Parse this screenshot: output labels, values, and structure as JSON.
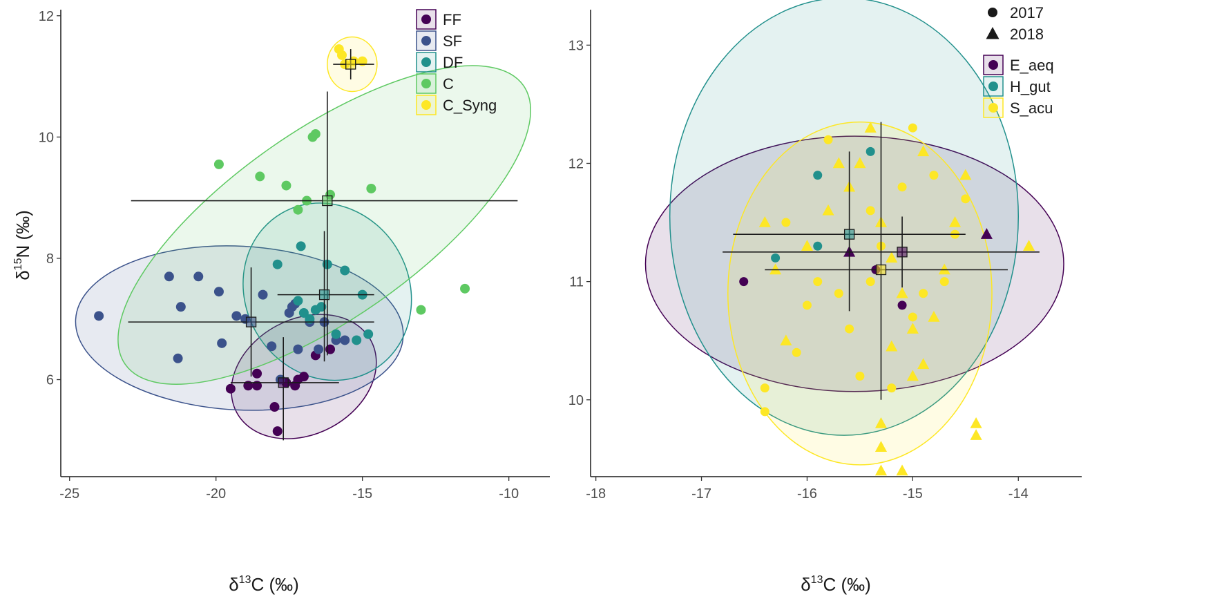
{
  "chart_data": [
    {
      "type": "scatter",
      "panel": "left",
      "xlabel_prefix": "δ",
      "xlabel_sup": "13",
      "xlabel_suffix": "C (‰)",
      "ylabel_prefix": "δ",
      "ylabel_sup": "15",
      "ylabel_suffix": "N (‰)",
      "xlim": [
        -25.3,
        -8.6
      ],
      "ylim": [
        4.4,
        12.1
      ],
      "xticks": [
        -25,
        -20,
        -15,
        -10
      ],
      "yticks": [
        6,
        8,
        10,
        12
      ],
      "legend_position": "top-right",
      "groups": [
        {
          "name": "FF",
          "color": "#440154",
          "points": [
            [
              -19.5,
              5.85
            ],
            [
              -18.9,
              5.9
            ],
            [
              -18.6,
              6.1
            ],
            [
              -18.6,
              5.9
            ],
            [
              -18.0,
              5.55
            ],
            [
              -17.9,
              5.15
            ],
            [
              -17.6,
              5.95
            ],
            [
              -17.3,
              5.9
            ],
            [
              -17.2,
              6.0
            ],
            [
              -17.0,
              6.05
            ],
            [
              -16.6,
              6.4
            ],
            [
              -16.1,
              6.5
            ]
          ],
          "mean": [
            -17.7,
            5.95
          ],
          "x_bar": [
            -19.5,
            -15.8
          ],
          "y_bar": [
            5.0,
            6.7
          ],
          "ellipse": {
            "cx": -17.0,
            "cy": 6.05,
            "rx": 2.6,
            "ry": 0.95,
            "angle": 28
          }
        },
        {
          "name": "SF",
          "color": "#3b528b",
          "points": [
            [
              -24.0,
              7.05
            ],
            [
              -21.6,
              7.7
            ],
            [
              -21.2,
              7.2
            ],
            [
              -21.3,
              6.35
            ],
            [
              -20.6,
              7.7
            ],
            [
              -19.9,
              7.45
            ],
            [
              -19.8,
              6.6
            ],
            [
              -19.3,
              7.05
            ],
            [
              -19.0,
              7.0
            ],
            [
              -18.4,
              7.4
            ],
            [
              -18.1,
              6.55
            ],
            [
              -17.8,
              6.0
            ],
            [
              -17.5,
              7.1
            ],
            [
              -17.3,
              7.25
            ],
            [
              -17.2,
              6.5
            ],
            [
              -16.8,
              6.95
            ],
            [
              -16.5,
              6.5
            ],
            [
              -16.3,
              6.95
            ],
            [
              -15.9,
              6.65
            ],
            [
              -15.6,
              6.65
            ],
            [
              -17.4,
              7.2
            ]
          ],
          "mean": [
            -18.8,
            6.95
          ],
          "x_bar": [
            -23.0,
            -14.6
          ],
          "y_bar": [
            6.05,
            7.85
          ],
          "ellipse": {
            "cx": -19.2,
            "cy": 6.85,
            "rx": 5.6,
            "ry": 1.35,
            "angle": -3
          }
        },
        {
          "name": "DF",
          "color": "#21908c",
          "points": [
            [
              -17.9,
              7.9
            ],
            [
              -17.2,
              7.3
            ],
            [
              -17.0,
              7.1
            ],
            [
              -16.8,
              7.0
            ],
            [
              -16.6,
              7.15
            ],
            [
              -16.4,
              7.2
            ],
            [
              -16.2,
              7.9
            ],
            [
              -15.9,
              6.75
            ],
            [
              -15.6,
              7.8
            ],
            [
              -15.2,
              6.65
            ],
            [
              -14.8,
              6.75
            ],
            [
              -15.0,
              7.4
            ],
            [
              -17.1,
              8.2
            ]
          ],
          "mean": [
            -16.3,
            7.4
          ],
          "x_bar": [
            -17.9,
            -14.6
          ],
          "y_bar": [
            6.3,
            8.45
          ],
          "ellipse": {
            "cx": -16.2,
            "cy": 7.45,
            "rx": 3.1,
            "ry": 1.35,
            "angle": 120
          }
        },
        {
          "name": "C",
          "color": "#5ec962",
          "points": [
            [
              -19.9,
              9.55
            ],
            [
              -18.5,
              9.35
            ],
            [
              -17.6,
              9.2
            ],
            [
              -17.2,
              8.8
            ],
            [
              -16.9,
              8.95
            ],
            [
              -16.6,
              10.05
            ],
            [
              -16.7,
              10.0
            ],
            [
              -16.1,
              9.05
            ],
            [
              -14.7,
              9.15
            ],
            [
              -13.0,
              7.15
            ],
            [
              -11.5,
              7.5
            ]
          ],
          "mean": [
            -16.2,
            8.95
          ],
          "x_bar": [
            -22.9,
            -9.7
          ],
          "y_bar": [
            6.4,
            10.75
          ],
          "ellipse": {
            "cx": -16.3,
            "cy": 8.55,
            "rx": 8.3,
            "ry": 1.55,
            "angle": 35
          }
        },
        {
          "name": "C_Syng",
          "color": "#fde725",
          "points": [
            [
              -15.8,
              11.45
            ],
            [
              -15.6,
              11.2
            ],
            [
              -15.3,
              11.25
            ],
            [
              -15.0,
              11.25
            ],
            [
              -15.7,
              11.35
            ]
          ],
          "mean": [
            -15.4,
            11.2
          ],
          "x_bar": [
            -16.0,
            -14.6
          ],
          "y_bar": [
            10.95,
            11.45
          ],
          "ellipse": {
            "cx": -15.35,
            "cy": 11.2,
            "rx": 0.85,
            "ry": 0.45,
            "angle": 0
          }
        }
      ]
    },
    {
      "type": "scatter",
      "panel": "right",
      "xlabel_prefix": "δ",
      "xlabel_sup": "13",
      "xlabel_suffix": "C (‰)",
      "xlim": [
        -18.05,
        -13.4
      ],
      "ylim": [
        9.35,
        13.3
      ],
      "xticks": [
        -18,
        -17,
        -16,
        -15,
        -14
      ],
      "yticks": [
        10,
        11,
        12,
        13
      ],
      "legend_position": "top-right",
      "shape_legend": [
        {
          "label": "2017",
          "shape": "circle"
        },
        {
          "label": "2018",
          "shape": "triangle"
        }
      ],
      "groups": [
        {
          "name": "E_aeq",
          "color": "#440154",
          "points_2017": [
            [
              -16.6,
              11.0
            ],
            [
              -15.1,
              10.8
            ],
            [
              -15.35,
              11.1
            ]
          ],
          "points_2018": [
            [
              -15.6,
              11.25
            ],
            [
              -14.3,
              11.4
            ]
          ],
          "mean": [
            -15.1,
            11.25
          ],
          "x_bar": [
            -16.8,
            -13.8
          ],
          "y_bar": [
            10.95,
            11.55
          ],
          "ellipse": {
            "cx": -15.55,
            "cy": 11.15,
            "rx": 1.98,
            "ry": 1.08,
            "angle": 0
          }
        },
        {
          "name": "H_gut",
          "color": "#21908c",
          "points_2017": [
            [
              -16.3,
              11.2
            ],
            [
              -15.9,
              11.9
            ],
            [
              -15.4,
              12.1
            ],
            [
              -15.9,
              11.3
            ]
          ],
          "points_2018": [],
          "mean": [
            -15.6,
            11.4
          ],
          "x_bar": [
            -16.7,
            -14.5
          ],
          "y_bar": [
            10.75,
            12.1
          ],
          "ellipse": {
            "cx": -15.65,
            "cy": 11.55,
            "rx": 1.65,
            "ry": 1.85,
            "angle": 0
          }
        },
        {
          "name": "S_acu",
          "color": "#fde725",
          "points_2017": [
            [
              -16.4,
              10.1
            ],
            [
              -16.4,
              9.9
            ],
            [
              -16.1,
              10.4
            ],
            [
              -16.0,
              10.8
            ],
            [
              -15.7,
              10.9
            ],
            [
              -15.5,
              10.2
            ],
            [
              -15.4,
              11.6
            ],
            [
              -15.2,
              10.1
            ],
            [
              -15.0,
              10.7
            ],
            [
              -14.9,
              10.9
            ],
            [
              -14.7,
              11.0
            ],
            [
              -14.6,
              11.4
            ],
            [
              -14.5,
              11.7
            ],
            [
              -15.8,
              12.2
            ],
            [
              -16.2,
              11.5
            ],
            [
              -15.9,
              11.0
            ],
            [
              -15.3,
              11.3
            ],
            [
              -15.1,
              11.8
            ],
            [
              -15.0,
              12.3
            ],
            [
              -14.8,
              11.9
            ],
            [
              -15.6,
              10.6
            ],
            [
              -15.4,
              11.0
            ]
          ],
          "points_2018": [
            [
              -16.4,
              11.5
            ],
            [
              -16.3,
              11.1
            ],
            [
              -16.0,
              11.3
            ],
            [
              -15.8,
              11.6
            ],
            [
              -15.6,
              11.8
            ],
            [
              -15.5,
              12.0
            ],
            [
              -15.4,
              12.3
            ],
            [
              -15.3,
              11.5
            ],
            [
              -15.2,
              11.2
            ],
            [
              -15.1,
              10.9
            ],
            [
              -15.0,
              10.6
            ],
            [
              -14.9,
              10.3
            ],
            [
              -14.8,
              10.7
            ],
            [
              -14.7,
              11.1
            ],
            [
              -14.6,
              11.5
            ],
            [
              -14.5,
              11.9
            ],
            [
              -15.3,
              9.8
            ],
            [
              -15.3,
              9.6
            ],
            [
              -15.3,
              9.4
            ],
            [
              -15.1,
              9.4
            ],
            [
              -14.4,
              9.8
            ],
            [
              -14.4,
              9.7
            ],
            [
              -13.9,
              11.3
            ],
            [
              -15.0,
              10.2
            ],
            [
              -16.2,
              10.5
            ],
            [
              -15.7,
              12.0
            ],
            [
              -14.9,
              12.1
            ],
            [
              -15.2,
              10.45
            ]
          ],
          "mean": [
            -15.3,
            11.1
          ],
          "x_bar": [
            -16.4,
            -14.1
          ],
          "y_bar": [
            10.0,
            12.35
          ],
          "ellipse": {
            "cx": -15.5,
            "cy": 10.9,
            "rx": 1.25,
            "ry": 1.45,
            "angle": 0
          }
        }
      ]
    }
  ]
}
